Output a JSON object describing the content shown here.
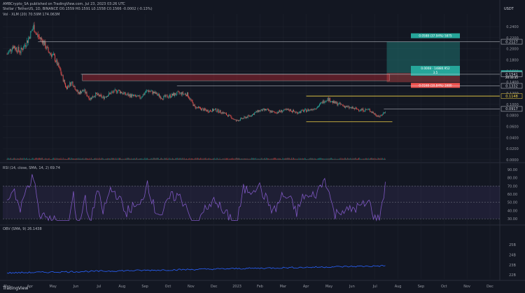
{
  "header": {
    "publish_line": "AMBCrypto_SA published on TradingView.com, Jul 23, 2023 03:26 UTC",
    "symbol_line": "Stellar / TetherUS, 1D, BINANCE  O0.1559  H0.1591  L0.1558  C0.1566  -0.0002 (-0.13%)",
    "volume_line": "Vol · XLM (20)  70.59M  174.063M",
    "quote_currency": "USDT"
  },
  "price_panel": {
    "axis_ticks": [
      "0.2400",
      "0.2200",
      "0.2000",
      "0.1800",
      "0.1600",
      "0.1400",
      "0.1200",
      "0.1000",
      "0.0800",
      "0.0600",
      "0.0400",
      "0.0200",
      "0.0000"
    ],
    "levels": [
      {
        "label": "0.2127",
        "value": 0.2127,
        "color": "#d1d4dc"
      },
      {
        "label": "0.1566",
        "value": 0.1566,
        "color": "#26a69a"
      },
      {
        "label": "0.1541",
        "value": 0.1541,
        "color": "#d1d4dc"
      },
      {
        "label": "0.1332",
        "value": 0.1332,
        "color": "#d1d4dc"
      },
      {
        "label": "0.1148",
        "value": 0.1148,
        "color": "#f5d547"
      },
      {
        "label": "0.0917",
        "value": 0.0917,
        "color": "#d1d4dc"
      }
    ],
    "current_price": "0.1566",
    "countdown": "20:33:35",
    "target_label": "0.0588 (37.94%) 5875",
    "rr_label_1": "0.0008 · 14880.952",
    "rr_label_2": "3.5",
    "stop_label": "0.0168 (10.84%) 1680"
  },
  "rsi_panel": {
    "label": "RSI (14, close, SMA, 14, 2)  69.74",
    "axis_ticks": [
      "90.00",
      "80.00",
      "70.00",
      "60.00",
      "50.00",
      "40.00",
      "30.00"
    ]
  },
  "obv_panel": {
    "label": "OBV (SMA, 9)  26.1438",
    "axis_ticks": [
      "25B",
      "24B",
      "23B",
      "22B"
    ]
  },
  "time_axis": [
    "Mar",
    "Apr",
    "May",
    "Jun",
    "Jul",
    "Aug",
    "Sep",
    "Oct",
    "Nov",
    "Dec",
    "2023",
    "Feb",
    "Mar",
    "Apr",
    "May",
    "Jun",
    "Jul",
    "Aug",
    "Sep",
    "Oct",
    "Nov",
    "Dec"
  ],
  "footer": "TradingView",
  "colors": {
    "up": "#26a69a",
    "down": "#ef5350",
    "support": "#f5d547",
    "rsi": "#7e57c2",
    "obv": "#2962ff",
    "background": "#131722"
  },
  "chart_data": {
    "type": "candlestick",
    "title": "Stellar / TetherUS, 1D, BINANCE",
    "x": [
      "Mar",
      "Apr",
      "May",
      "Jun",
      "Jul",
      "Aug",
      "Sep",
      "Oct",
      "Nov",
      "Dec",
      "2023",
      "Feb",
      "Mar",
      "Apr",
      "May",
      "Jun",
      "Jul"
    ],
    "close_estimates": [
      0.205,
      0.225,
      0.19,
      0.13,
      0.115,
      0.12,
      0.115,
      0.12,
      0.1,
      0.085,
      0.08,
      0.088,
      0.085,
      0.105,
      0.092,
      0.078,
      0.156
    ],
    "ylim": [
      0.0,
      0.25
    ],
    "rsi_estimates": [
      60,
      65,
      45,
      38,
      50,
      48,
      45,
      50,
      40,
      45,
      52,
      55,
      45,
      60,
      45,
      40,
      82
    ],
    "obv_estimates_B": [
      22.2,
      22.4,
      22.2,
      22.1,
      22.2,
      22.25,
      22.2,
      22.3,
      22.35,
      22.3,
      22.4,
      22.5,
      22.6,
      22.8,
      22.7,
      22.9,
      26.1
    ]
  }
}
